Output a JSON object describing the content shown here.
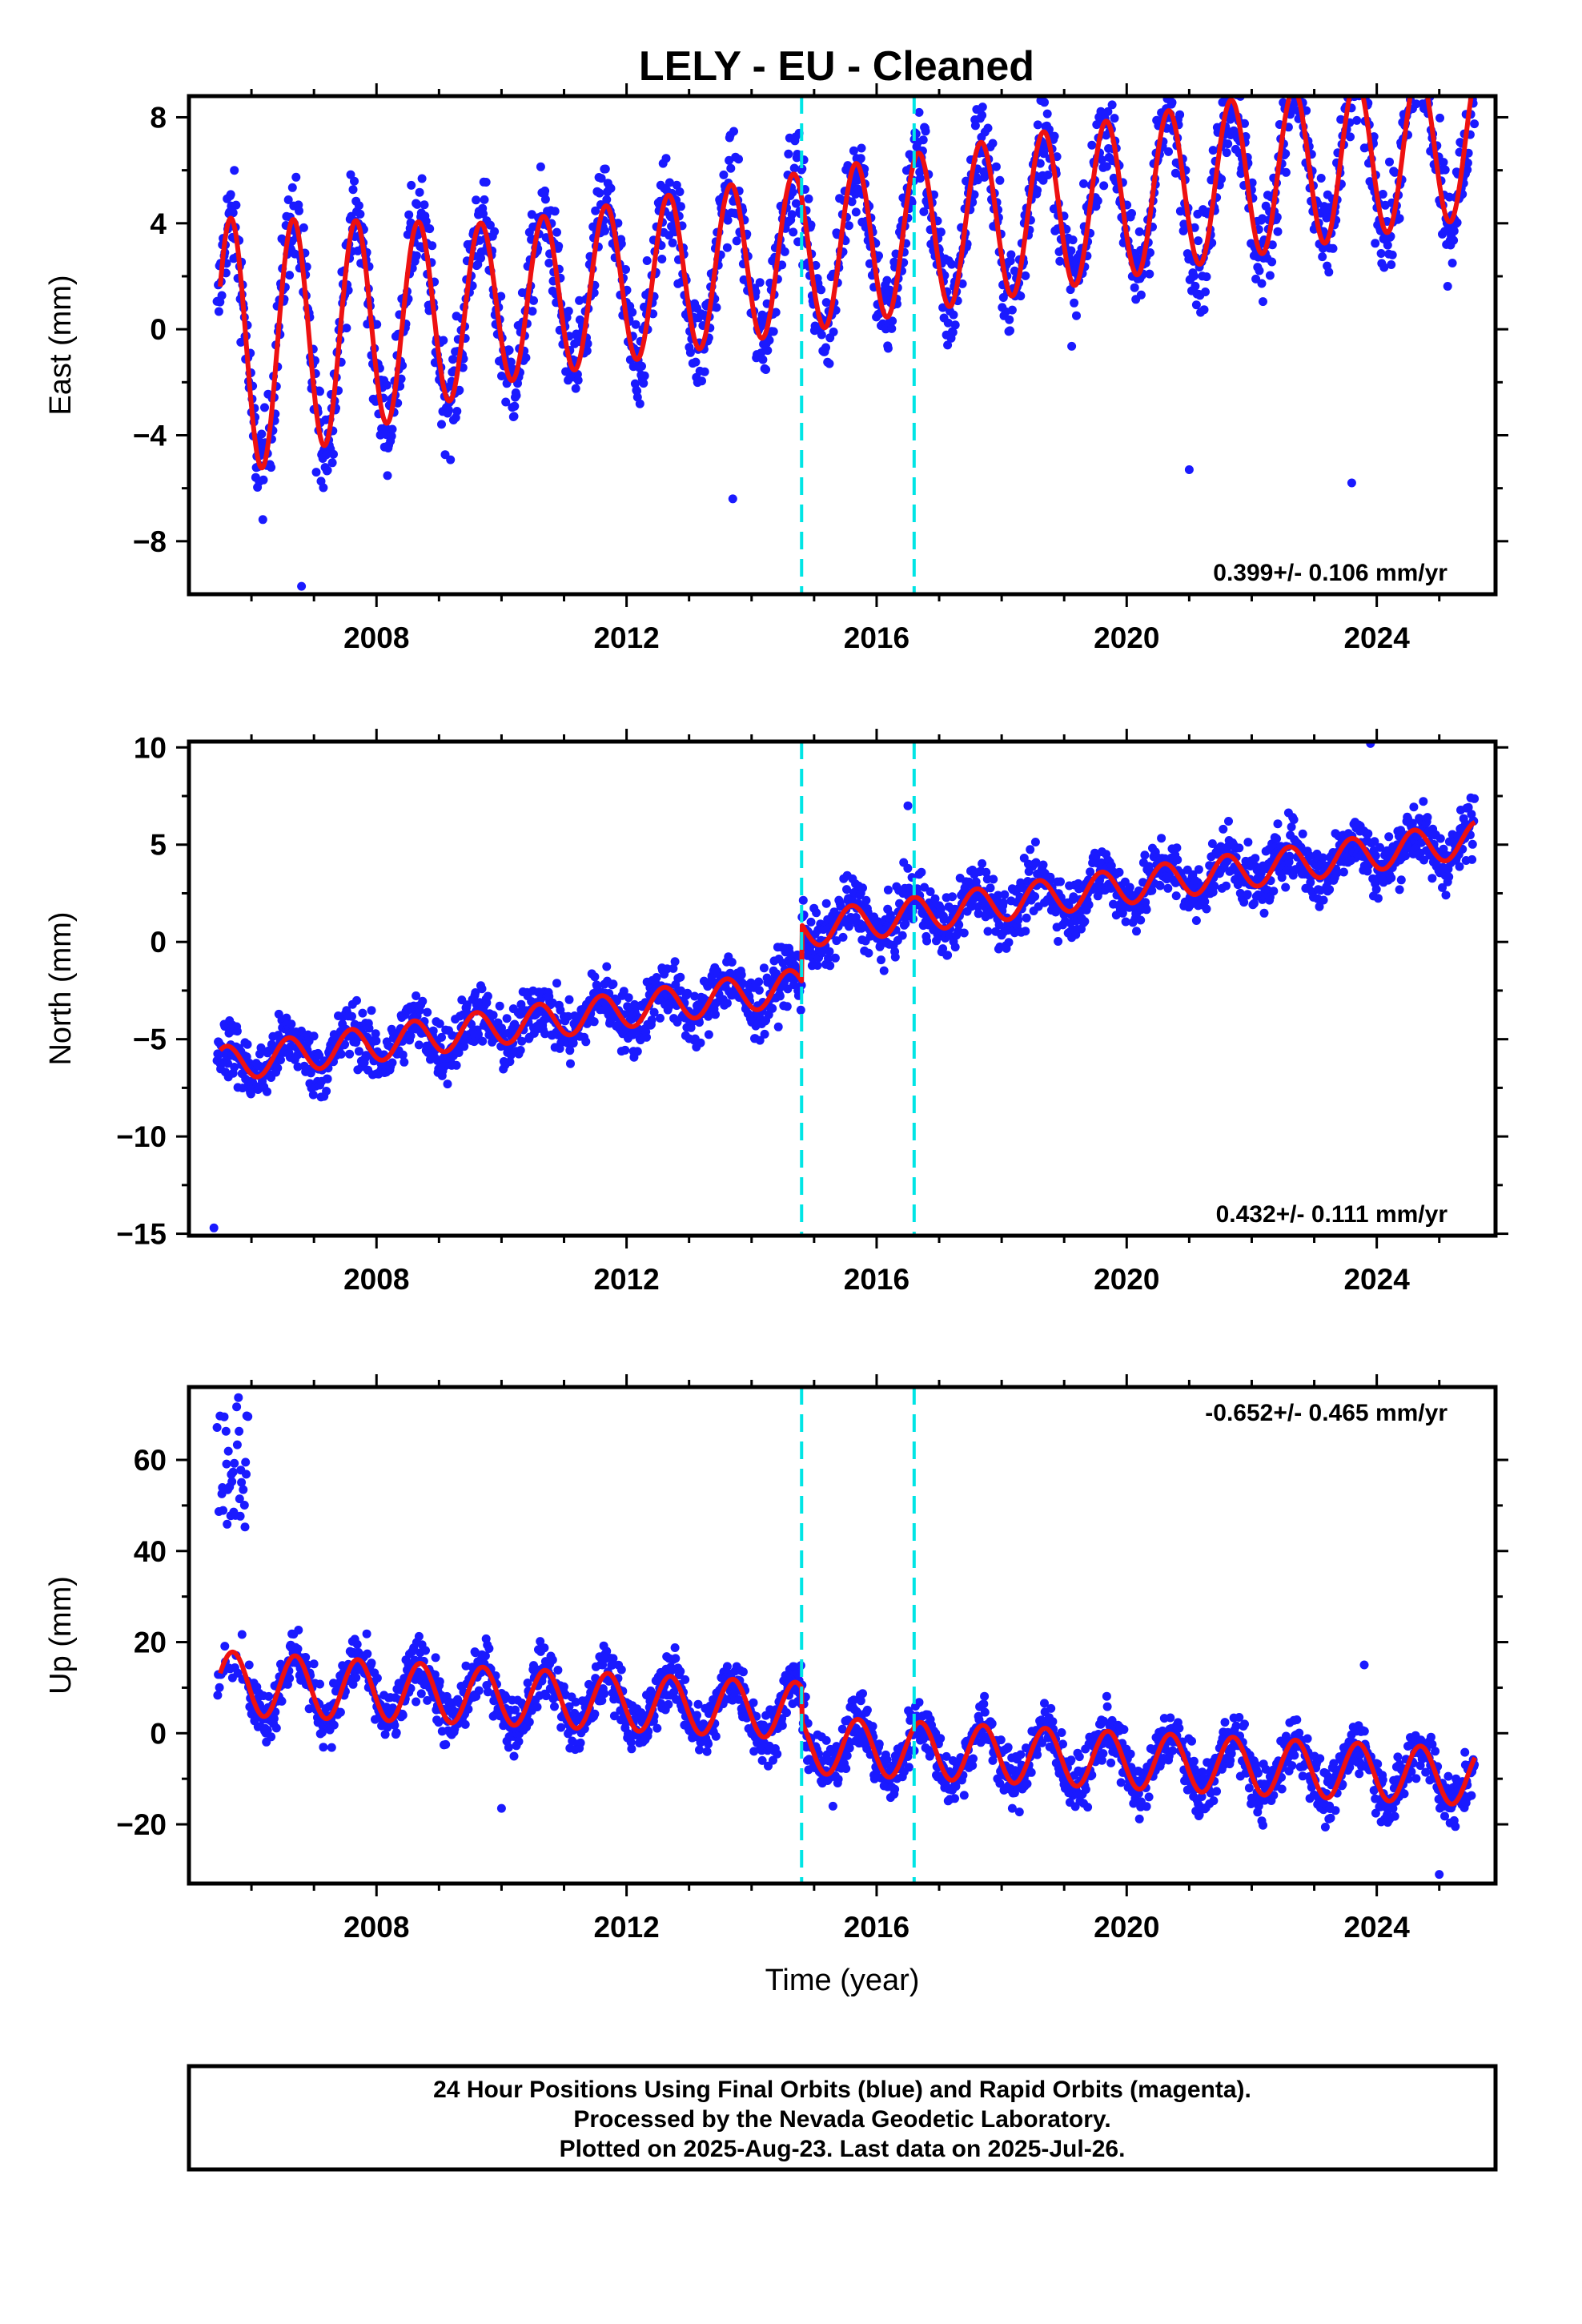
{
  "title": "LELY  - EU - Cleaned",
  "colors": {
    "data_points": "#1a1aff",
    "model_line": "#ee1111",
    "event_lines": "#00e5e5",
    "frame": "#000000"
  },
  "chart_data": [
    {
      "type": "scatter",
      "name": "east",
      "ylabel": "East (mm)",
      "xlabel": "",
      "xlim": [
        2005.0,
        2025.9
      ],
      "ylim": [
        -10,
        8.8
      ],
      "xticks": [
        2008,
        2012,
        2016,
        2020,
        2024
      ],
      "xtick_labels": [
        "2008",
        "2012",
        "2016",
        "2020",
        "2024"
      ],
      "yticks": [
        -8,
        -4,
        0,
        4,
        8
      ],
      "ytick_labels": [
        "−8",
        "−4",
        "0",
        "4",
        "8"
      ],
      "rate_text": "0.399+/- 0.106 mm/yr",
      "rate_position": "bottom-right",
      "event_lines_x": [
        2014.8,
        2016.6
      ],
      "model": {
        "offset": -0.8,
        "trend": 0.399,
        "amp": 3.1,
        "amp_early": 5.0,
        "amp_late": 3.0,
        "phase": 0.17,
        "steps": []
      },
      "scatter_noise": 1.3,
      "outliers": [
        [
          2006.8,
          -9.7
        ],
        [
          2013.7,
          -6.4
        ],
        [
          2021.0,
          -5.3
        ],
        [
          2023.6,
          -5.8
        ]
      ]
    },
    {
      "type": "scatter",
      "name": "north",
      "ylabel": "North (mm)",
      "xlabel": "",
      "xlim": [
        2005.0,
        2025.9
      ],
      "ylim": [
        -15.1,
        10.3
      ],
      "xticks": [
        2008,
        2012,
        2016,
        2020,
        2024
      ],
      "xtick_labels": [
        "2008",
        "2012",
        "2016",
        "2020",
        "2024"
      ],
      "yticks": [
        -15,
        -10,
        -5,
        0,
        5,
        10
      ],
      "ytick_labels": [
        "−15",
        "−10",
        "−5",
        "0",
        "5",
        "10"
      ],
      "rate_text": "0.432+/- 0.111 mm/yr",
      "rate_position": "bottom-right",
      "event_lines_x": [
        2014.8,
        2016.6
      ],
      "model": {
        "offset": -6.3,
        "trend": 0.432,
        "amp": 0.9,
        "amp_early": 0.9,
        "amp_late": 0.9,
        "phase": 0.1,
        "steps": [
          [
            2014.8,
            2.9
          ]
        ]
      },
      "scatter_noise": 1.1,
      "outliers": [
        [
          2005.4,
          -14.7
        ],
        [
          2016.5,
          7.0
        ],
        [
          2023.9,
          10.2
        ]
      ]
    },
    {
      "type": "scatter",
      "name": "up",
      "ylabel": "Up (mm)",
      "xlabel": "Time (year)",
      "xlim": [
        2005.0,
        2025.9
      ],
      "ylim": [
        -33,
        76
      ],
      "xticks": [
        2008,
        2012,
        2016,
        2020,
        2024
      ],
      "xtick_labels": [
        "2008",
        "2012",
        "2016",
        "2020",
        "2024"
      ],
      "yticks": [
        -20,
        0,
        20,
        40,
        60
      ],
      "ytick_labels": [
        "−20",
        "0",
        "20",
        "40",
        "60"
      ],
      "rate_text": "-0.652+/- 0.465 mm/yr",
      "rate_position": "top-right",
      "event_lines_x": [
        2014.8,
        2016.6
      ],
      "model": {
        "offset": 11.0,
        "trend": -0.652,
        "amp": 6.2,
        "amp_early": 7.0,
        "amp_late": 6.2,
        "phase": 0.2,
        "steps": [
          [
            2014.8,
            -7.5
          ]
        ]
      },
      "scatter_noise": 4.3,
      "early_cluster": {
        "x_range": [
          2005.45,
          2005.95
        ],
        "y_range": [
          45,
          74
        ]
      },
      "outliers": [
        [
          2010.0,
          -16.5
        ],
        [
          2023.8,
          15.0
        ],
        [
          2025.0,
          -31.0
        ]
      ]
    }
  ],
  "footer": {
    "lines": [
      "24 Hour Positions Using Final Orbits (blue) and Rapid Orbits (magenta).",
      "Processed by the Nevada Geodetic Laboratory.",
      "Plotted on 2025-Aug-23. Last data on 2025-Jul-26."
    ]
  }
}
